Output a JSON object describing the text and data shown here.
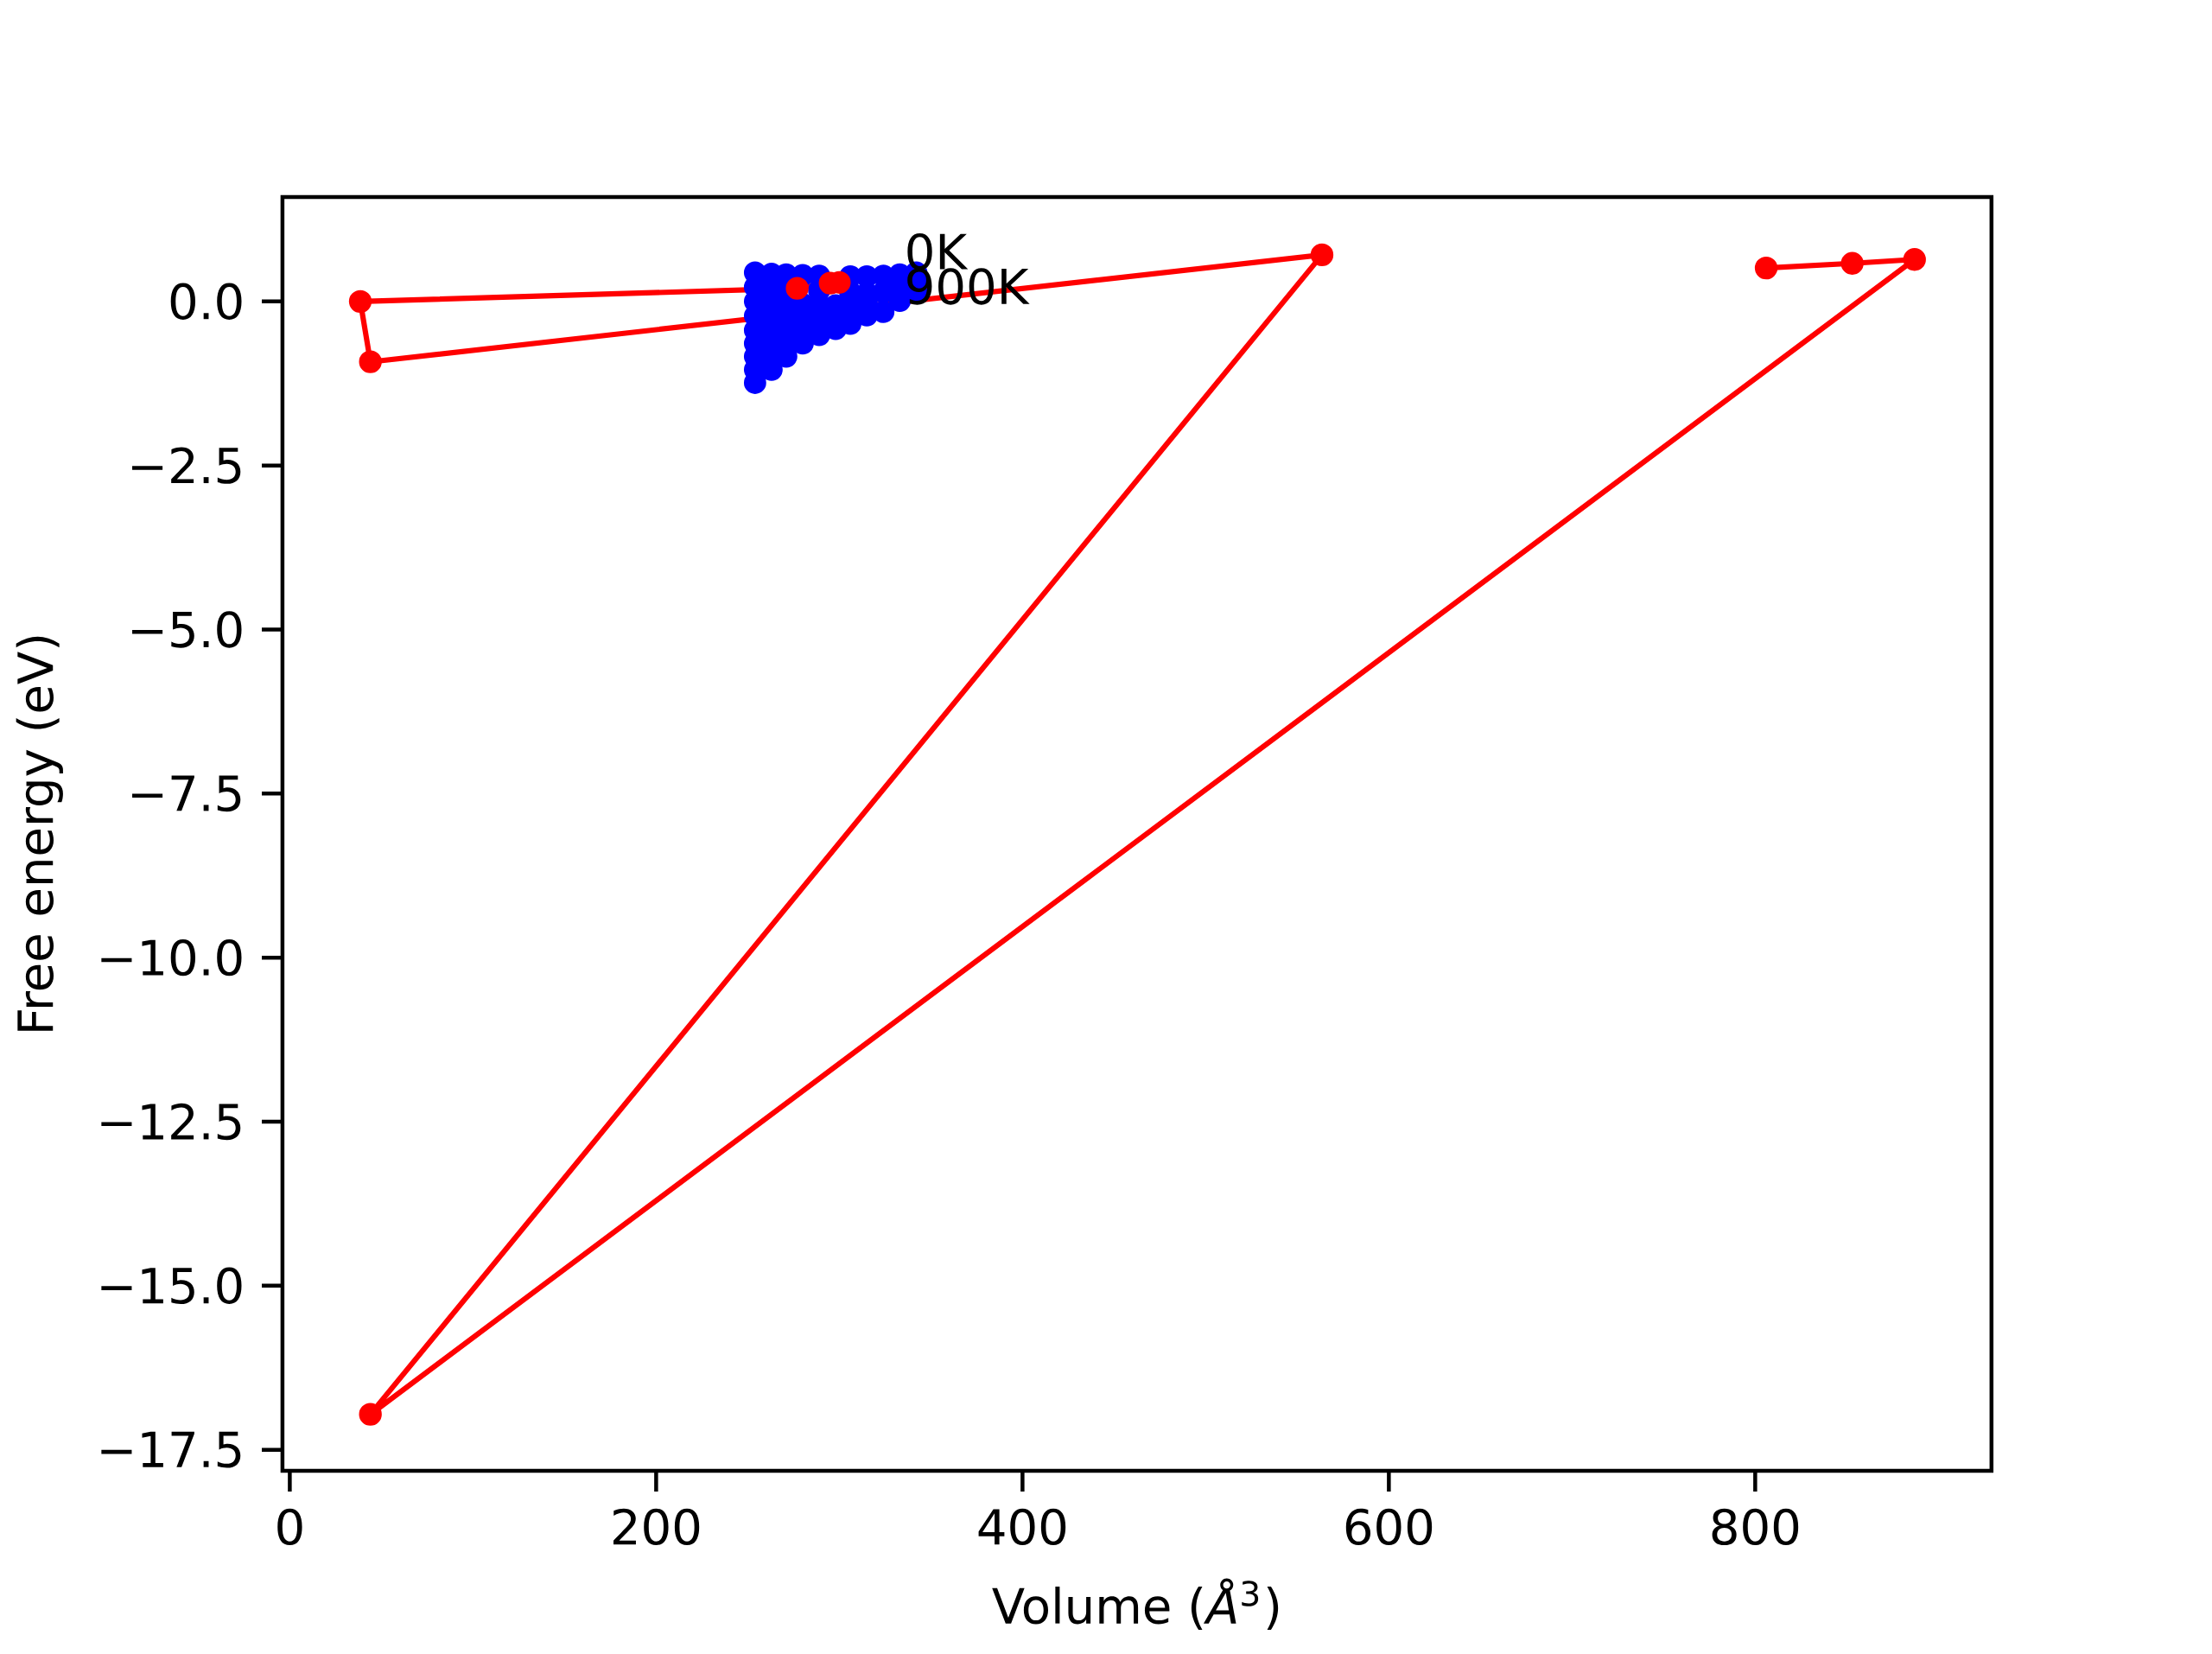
{
  "chart_data": {
    "type": "scatter",
    "xlabel": "Volume (*Å*$^{3}$)",
    "ylabel": "Free energy (eV)",
    "xlim": [
      -4,
      929
    ],
    "ylim": [
      -17.82,
      1.59
    ],
    "xticks": [
      0,
      200,
      400,
      600,
      800
    ],
    "yticks": [
      {
        "value": 0,
        "label": "0.0"
      },
      {
        "value": -2.5,
        "label": "−2.5"
      },
      {
        "value": -5,
        "label": "−5.0"
      },
      {
        "value": -7.5,
        "label": "−7.5"
      },
      {
        "value": -10,
        "label": "−10.0"
      },
      {
        "value": -12.5,
        "label": "−12.5"
      },
      {
        "value": -15,
        "label": "−15.0"
      },
      {
        "value": -17.5,
        "label": "−17.5"
      }
    ],
    "grid": false,
    "annotations": [
      {
        "text": "0K",
        "x": 335,
        "y": 0.49
      },
      {
        "text": "900K",
        "x": 335,
        "y": -0.04
      }
    ],
    "series": [
      {
        "color": "#0000ff",
        "marker": "circle",
        "x": [
          254,
          254,
          254,
          254,
          254,
          254,
          254,
          254,
          254,
          263,
          263,
          263,
          263,
          263,
          263,
          263,
          263,
          271,
          271,
          271,
          271,
          271,
          271,
          271,
          280,
          280,
          280,
          280,
          280,
          289,
          289,
          289,
          289,
          289,
          298,
          298,
          298,
          306,
          306,
          306,
          306,
          315,
          315,
          315,
          315,
          324,
          324,
          324,
          333,
          333,
          333,
          342,
          342,
          342
        ],
        "values": [
          0.44,
          0.22,
          0,
          -0.22,
          -0.44,
          -0.64,
          -0.84,
          -1.04,
          -1.24,
          0.42,
          0.2,
          -0.02,
          -0.24,
          -0.46,
          -0.66,
          -0.86,
          -1.04,
          0.41,
          0.19,
          -0.03,
          -0.25,
          -0.45,
          -0.65,
          -0.84,
          0.4,
          -0.04,
          -0.24,
          -0.44,
          -0.64,
          0.39,
          0.17,
          -0.05,
          -0.27,
          -0.51,
          -0.06,
          -0.24,
          -0.42,
          0.38,
          0.14,
          -0.1,
          -0.34,
          0.38,
          0.12,
          -0.04,
          -0.21,
          0.39,
          0.14,
          -0.16,
          0.41,
          0.2,
          0.01,
          0.44,
          0.3,
          0.15
        ]
      },
      {
        "type": "line",
        "color": "#ff0000",
        "marker": "circle",
        "line_style": "solid",
        "x": [
          300,
          295,
          277,
          38.5,
          44,
          563.5,
          44,
          887,
          853,
          806
        ],
        "values": [
          0.29,
          0.28,
          0.2,
          0,
          -0.92,
          0.71,
          -16.96,
          0.64,
          0.58,
          0.51
        ]
      }
    ]
  }
}
